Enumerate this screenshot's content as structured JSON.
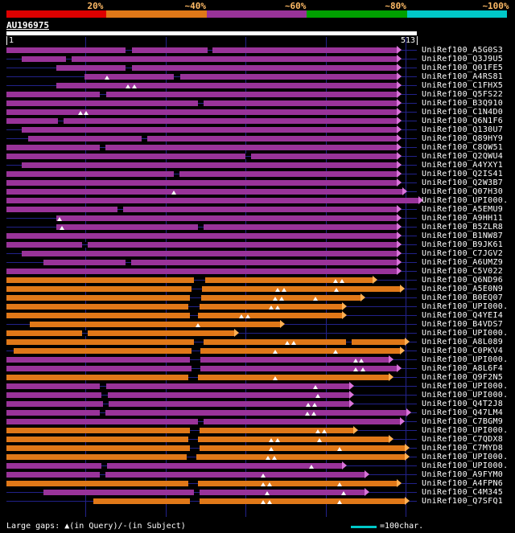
{
  "scale": {
    "labels": [
      "20%",
      "~40%",
      "~60%",
      "~80%",
      "~100%"
    ],
    "segment_colors": [
      "#dd0000",
      "#e07818",
      "#993399",
      "#00a000",
      "#00c8c8"
    ],
    "label_color": "#ffbb66"
  },
  "query": {
    "name": "AU196975",
    "start_label": "1",
    "end_label": "513"
  },
  "legend": {
    "gaps_text": "Large gaps: ▲(in Query)/-(in Subject)",
    "scale_text": "=100char.",
    "scale_color": "#00c8c8"
  },
  "chart_data": {
    "type": "alignment-overview",
    "title": "AU196975",
    "x_range": [
      1,
      513
    ],
    "gridline_interval": 100,
    "gridlines": [
      100,
      200,
      300,
      400,
      500
    ],
    "colors": {
      "purple": "#993399",
      "orange": "#e07818",
      "purple_tip": "#d973d9",
      "orange_tip": "#ffb052",
      "baseline": "#22228a"
    },
    "rows": [
      {
        "label": "UniRef100_A5G0S3",
        "color": "purple",
        "start": 1,
        "end": 488,
        "gaps_query": [],
        "gaps_subject": [
          [
            150,
            158
          ],
          [
            252,
            258
          ]
        ]
      },
      {
        "label": "UniRef100_Q3J9U5",
        "color": "purple",
        "start": 20,
        "end": 488,
        "gaps_query": [],
        "gaps_subject": [
          [
            75,
            82
          ]
        ]
      },
      {
        "label": "UniRef100_Q01FE5",
        "color": "purple",
        "start": 63,
        "end": 488,
        "gaps_query": [],
        "gaps_subject": [
          [
            150,
            158
          ]
        ]
      },
      {
        "label": "UniRef100_A4RS81",
        "color": "purple",
        "start": 99,
        "end": 488,
        "gaps_query": [
          127
        ],
        "gaps_subject": [
          [
            210,
            218
          ]
        ]
      },
      {
        "label": "UniRef100_C1FHX5",
        "color": "purple",
        "start": 63,
        "end": 488,
        "gaps_query": [
          153,
          161
        ],
        "gaps_subject": []
      },
      {
        "label": "UniRef100_Q5FS22",
        "color": "purple",
        "start": 1,
        "end": 488,
        "gaps_query": [],
        "gaps_subject": [
          [
            118,
            126
          ]
        ]
      },
      {
        "label": "UniRef100_B3Q910",
        "color": "purple",
        "start": 1,
        "end": 488,
        "gaps_query": [],
        "gaps_subject": [
          [
            240,
            247
          ]
        ]
      },
      {
        "label": "UniRef100_C1N4D0",
        "color": "purple",
        "start": 1,
        "end": 488,
        "gaps_query": [
          93,
          101
        ],
        "gaps_subject": []
      },
      {
        "label": "UniRef100_Q6N1F6",
        "color": "purple",
        "start": 1,
        "end": 488,
        "gaps_query": [],
        "gaps_subject": [
          [
            65,
            72
          ]
        ]
      },
      {
        "label": "UniRef100_Q130U7",
        "color": "purple",
        "start": 20,
        "end": 488,
        "gaps_query": [],
        "gaps_subject": []
      },
      {
        "label": "UniRef100_Q89HY9",
        "color": "purple",
        "start": 28,
        "end": 488,
        "gaps_query": [],
        "gaps_subject": [
          [
            170,
            177
          ]
        ]
      },
      {
        "label": "UniRef100_C8QW51",
        "color": "purple",
        "start": 1,
        "end": 488,
        "gaps_query": [],
        "gaps_subject": [
          [
            118,
            125
          ]
        ]
      },
      {
        "label": "UniRef100_Q2QWU4",
        "color": "purple",
        "start": 1,
        "end": 488,
        "gaps_query": [],
        "gaps_subject": [
          [
            300,
            307
          ]
        ]
      },
      {
        "label": "UniRef100_A4YXY1",
        "color": "purple",
        "start": 20,
        "end": 488,
        "gaps_query": [],
        "gaps_subject": []
      },
      {
        "label": "UniRef100_Q2IS41",
        "color": "purple",
        "start": 1,
        "end": 488,
        "gaps_query": [],
        "gaps_subject": [
          [
            210,
            217
          ]
        ]
      },
      {
        "label": "UniRef100_Q2W3B7",
        "color": "purple",
        "start": 1,
        "end": 488,
        "gaps_query": [],
        "gaps_subject": []
      },
      {
        "label": "UniRef100_Q07H30",
        "color": "purple",
        "start": 1,
        "end": 495,
        "gaps_query": [
          210
        ],
        "gaps_subject": []
      },
      {
        "label": "UniRef100_UPI000.",
        "color": "purple",
        "start": 1,
        "end": 515,
        "gaps_query": [],
        "gaps_subject": []
      },
      {
        "label": "UniRef100_A5EMU9",
        "color": "purple",
        "start": 1,
        "end": 488,
        "gaps_query": [],
        "gaps_subject": [
          [
            140,
            147
          ]
        ]
      },
      {
        "label": "UniRef100_A9HH11",
        "color": "purple",
        "start": 63,
        "end": 488,
        "gaps_query": [
          67
        ],
        "gaps_subject": []
      },
      {
        "label": "UniRef100_B5ZLR8",
        "color": "purple",
        "start": 63,
        "end": 488,
        "gaps_query": [
          70
        ],
        "gaps_subject": [
          [
            240,
            247
          ]
        ]
      },
      {
        "label": "UniRef100_B1NW87",
        "color": "purple",
        "start": 1,
        "end": 488,
        "gaps_query": [],
        "gaps_subject": []
      },
      {
        "label": "UniRef100_B9JK61",
        "color": "purple",
        "start": 1,
        "end": 488,
        "gaps_query": [],
        "gaps_subject": [
          [
            95,
            102
          ]
        ]
      },
      {
        "label": "UniRef100_C7JGV2",
        "color": "purple",
        "start": 20,
        "end": 488,
        "gaps_query": [],
        "gaps_subject": []
      },
      {
        "label": "UniRef100_A6UMZ9",
        "color": "purple",
        "start": 47,
        "end": 488,
        "gaps_query": [],
        "gaps_subject": [
          [
            150,
            157
          ]
        ]
      },
      {
        "label": "UniRef100_C5V022",
        "color": "purple",
        "start": 1,
        "end": 488,
        "gaps_query": [],
        "gaps_subject": []
      },
      {
        "label": "UniRef100_Q6ND96",
        "color": "orange",
        "start": 1,
        "end": 458,
        "gaps_query": [
          412,
          420
        ],
        "gaps_subject": [
          [
            235,
            250
          ]
        ]
      },
      {
        "label": "UniRef100_A5E0N9",
        "color": "orange",
        "start": 1,
        "end": 492,
        "gaps_query": [
          340,
          348,
          413
        ],
        "gaps_subject": [
          [
            232,
            246
          ]
        ]
      },
      {
        "label": "UniRef100_B0EQ07",
        "color": "orange",
        "start": 1,
        "end": 443,
        "gaps_query": [
          337,
          345,
          387
        ],
        "gaps_subject": [
          [
            230,
            244
          ]
        ]
      },
      {
        "label": "UniRef100_UPI000.",
        "color": "orange",
        "start": 1,
        "end": 419,
        "gaps_query": [
          332,
          340
        ],
        "gaps_subject": [
          [
            228,
            242
          ]
        ]
      },
      {
        "label": "UniRef100_Q4YEI4",
        "color": "orange",
        "start": 1,
        "end": 419,
        "gaps_query": [
          295,
          303
        ],
        "gaps_subject": [
          [
            230,
            240
          ]
        ]
      },
      {
        "label": "UniRef100_B4VDS7",
        "color": "orange",
        "start": 30,
        "end": 342,
        "gaps_query": [
          240
        ],
        "gaps_subject": []
      },
      {
        "label": "UniRef100_UPI000.",
        "color": "orange",
        "start": 1,
        "end": 285,
        "gaps_query": [],
        "gaps_subject": [
          [
            95,
            102
          ]
        ]
      },
      {
        "label": "UniRef100_A8L089",
        "color": "orange",
        "start": 1,
        "end": 498,
        "gaps_query": [
          352,
          360
        ],
        "gaps_subject": [
          [
            235,
            248
          ],
          [
            425,
            432
          ]
        ]
      },
      {
        "label": "UniRef100_C0PKV4",
        "color": "orange",
        "start": 10,
        "end": 492,
        "gaps_query": [
          337,
          412
        ],
        "gaps_subject": [
          [
            232,
            244
          ]
        ]
      },
      {
        "label": "UniRef100_UPI000.",
        "color": "purple",
        "start": 1,
        "end": 478,
        "gaps_query": [
          437,
          445
        ],
        "gaps_subject": [
          [
            230,
            243
          ]
        ]
      },
      {
        "label": "UniRef100_A8L6F4",
        "color": "purple",
        "start": 1,
        "end": 488,
        "gaps_query": [
          437,
          447
        ],
        "gaps_subject": [
          [
            232,
            244
          ]
        ]
      },
      {
        "label": "UniRef100_Q9F2N5",
        "color": "orange",
        "start": 1,
        "end": 478,
        "gaps_query": [
          337
        ],
        "gaps_subject": [
          [
            228,
            240
          ]
        ]
      },
      {
        "label": "UniRef100_UPI000.",
        "color": "purple",
        "start": 1,
        "end": 428,
        "gaps_query": [
          387
        ],
        "gaps_subject": [
          [
            118,
            126
          ]
        ]
      },
      {
        "label": "UniRef100_UPI000.",
        "color": "purple",
        "start": 1,
        "end": 428,
        "gaps_query": [
          390
        ],
        "gaps_subject": [
          [
            120,
            128
          ]
        ]
      },
      {
        "label": "UniRef100_Q4T2J8",
        "color": "purple",
        "start": 1,
        "end": 428,
        "gaps_query": [
          378,
          386
        ],
        "gaps_subject": [
          [
            122,
            129
          ]
        ]
      },
      {
        "label": "UniRef100_Q47LM4",
        "color": "purple",
        "start": 1,
        "end": 500,
        "gaps_query": [
          377,
          385
        ],
        "gaps_subject": [
          [
            118,
            125
          ]
        ]
      },
      {
        "label": "UniRef100_C7BGM9",
        "color": "purple",
        "start": 1,
        "end": 492,
        "gaps_query": [],
        "gaps_subject": [
          [
            240,
            247
          ]
        ]
      },
      {
        "label": "UniRef100_UPI000.",
        "color": "orange",
        "start": 1,
        "end": 433,
        "gaps_query": [
          390,
          398
        ],
        "gaps_subject": [
          [
            230,
            242
          ]
        ]
      },
      {
        "label": "UniRef100_C7QDX8",
        "color": "orange",
        "start": 1,
        "end": 478,
        "gaps_query": [
          332,
          340,
          392
        ],
        "gaps_subject": [
          [
            228,
            240
          ]
        ]
      },
      {
        "label": "UniRef100_C7MYD8",
        "color": "orange",
        "start": 1,
        "end": 498,
        "gaps_query": [
          332,
          417
        ],
        "gaps_subject": [
          [
            230,
            242
          ]
        ]
      },
      {
        "label": "UniRef100_UPI000.",
        "color": "orange",
        "start": 1,
        "end": 498,
        "gaps_query": [
          328,
          336
        ],
        "gaps_subject": [
          [
            226,
            238
          ]
        ]
      },
      {
        "label": "UniRef100_UPI000.",
        "color": "purple",
        "start": 1,
        "end": 419,
        "gaps_query": [
          382
        ],
        "gaps_subject": [
          [
            120,
            127
          ]
        ]
      },
      {
        "label": "UniRef100_A9FYM0",
        "color": "purple",
        "start": 1,
        "end": 448,
        "gaps_query": [
          322
        ],
        "gaps_subject": [
          [
            118,
            125
          ]
        ]
      },
      {
        "label": "UniRef100_A4FPN6",
        "color": "orange",
        "start": 1,
        "end": 488,
        "gaps_query": [
          322,
          330,
          417
        ],
        "gaps_subject": [
          [
            228,
            240
          ]
        ]
      },
      {
        "label": "UniRef100_C4M345",
        "color": "purple",
        "start": 47,
        "end": 448,
        "gaps_query": [
          327,
          422
        ],
        "gaps_subject": [
          [
            235,
            242
          ]
        ]
      },
      {
        "label": "UniRef100_Q7SFQ1",
        "color": "orange",
        "start": 110,
        "end": 498,
        "gaps_query": [
          322,
          330,
          417
        ],
        "gaps_subject": [
          [
            230,
            242
          ]
        ]
      }
    ]
  }
}
